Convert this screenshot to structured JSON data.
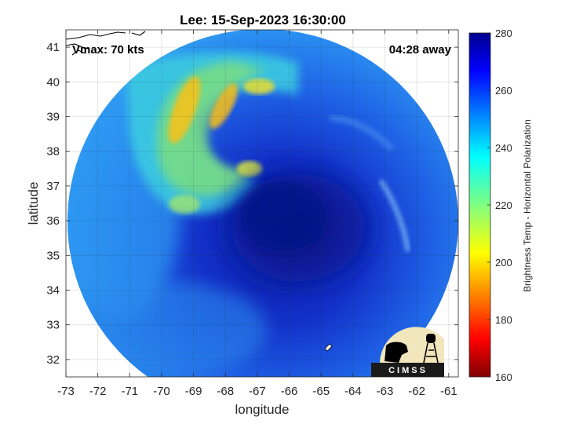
{
  "chart_data": {
    "type": "heatmap",
    "title": "Lee: 15-Sep-2023 16:30:00",
    "xlabel": "longitude",
    "ylabel": "latitude",
    "xlim": [
      -73,
      -60.7
    ],
    "ylim": [
      31.5,
      41.5
    ],
    "xticks": [
      "-73",
      "-72",
      "-71",
      "-70",
      "-69",
      "-68",
      "-67",
      "-66",
      "-65",
      "-64",
      "-63",
      "-62",
      "-61"
    ],
    "yticks": [
      "32",
      "33",
      "34",
      "35",
      "36",
      "37",
      "38",
      "39",
      "40",
      "41"
    ],
    "grid": true,
    "annotations": {
      "left": "Vmax: 70 kts",
      "right": "04:28 away"
    },
    "colorbar": {
      "label": "Brightness Temp - Horizontal Polarization",
      "range": [
        160,
        280
      ],
      "ticks": [
        "160",
        "180",
        "200",
        "220",
        "240",
        "260",
        "280"
      ],
      "colormap": "jet"
    },
    "storm_center": {
      "lon": -66.5,
      "lat": 36.0
    },
    "swath_center": {
      "lon": -66.7,
      "lat": 36.7
    },
    "warm_features": [
      {
        "lon": -69.2,
        "lat": 38.9,
        "value": 195
      },
      {
        "lon": -68.3,
        "lat": 39.3,
        "value": 200
      },
      {
        "lon": -67.8,
        "lat": 39.7,
        "value": 210
      },
      {
        "lon": -67.5,
        "lat": 37.4,
        "value": 215
      },
      {
        "lon": -69.3,
        "lat": 36.9,
        "value": 225
      }
    ],
    "logo": "CIMSS"
  }
}
